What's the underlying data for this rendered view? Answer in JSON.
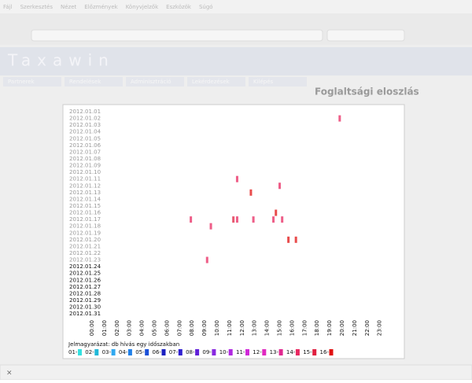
{
  "browser": {
    "menu": [
      "Fájl",
      "Szerkesztés",
      "Nézet",
      "Előzmények",
      "Könyvjelzők",
      "Eszközök",
      "Súgó"
    ]
  },
  "header": {
    "title": "Taxawin",
    "nav": [
      "Partnerek",
      "Rendelések",
      "Adminisztráció",
      "Lekérdezések",
      "Kilépés"
    ]
  },
  "chart_data": {
    "type": "occupancy",
    "title": "Foglaltsági eloszlás",
    "dates": [
      "2012.01.01",
      "2012.01.02",
      "2012.01.03",
      "2012.01.04",
      "2012.01.05",
      "2012.01.06",
      "2012.01.07",
      "2012.01.08",
      "2012.01.09",
      "2012.01.10",
      "2012.01.11",
      "2012.01.12",
      "2012.01.13",
      "2012.01.14",
      "2012.01.15",
      "2012.01.16",
      "2012.01.17",
      "2012.01.18",
      "2012.01.19",
      "2012.01.20",
      "2012.01.21",
      "2012.01.22",
      "2012.01.23",
      "2012.01.24",
      "2012.01.25",
      "2012.01.26",
      "2012.01.27",
      "2012.01.28",
      "2012.01.29",
      "2012.01.30",
      "2012.01.31"
    ],
    "hours": [
      "00:00",
      "01:00",
      "02:00",
      "03:00",
      "04:00",
      "05:00",
      "06:00",
      "07:00",
      "08:00",
      "09:00",
      "10:00",
      "11:00",
      "12:00",
      "13:00",
      "14:00",
      "15:00",
      "16:00",
      "17:00",
      "18:00",
      "19:00",
      "20:00",
      "21:00",
      "22:00",
      "23:00"
    ],
    "legend_title": "Jelmagyarázat: db hívás egy időszakban",
    "legend": [
      {
        "name": "01-",
        "color": "#33e0e0"
      },
      {
        "name": "02-",
        "color": "#20b8d8"
      },
      {
        "name": "03-",
        "color": "#30a8f0"
      },
      {
        "name": "04-",
        "color": "#2080e8"
      },
      {
        "name": "05-",
        "color": "#1a50d8"
      },
      {
        "name": "06-",
        "color": "#1a20c0"
      },
      {
        "name": "07-",
        "color": "#3020d0"
      },
      {
        "name": "08-",
        "color": "#6020d8"
      },
      {
        "name": "09-",
        "color": "#8828e0"
      },
      {
        "name": "10-",
        "color": "#b028e0"
      },
      {
        "name": "11-",
        "color": "#d028d8"
      },
      {
        "name": "12-",
        "color": "#e028c0"
      },
      {
        "name": "13-",
        "color": "#e02890"
      },
      {
        "name": "14-",
        "color": "#e82860"
      },
      {
        "name": "15-",
        "color": "#e02040"
      },
      {
        "name": "16-",
        "color": "#e01010"
      }
    ],
    "marks": [
      {
        "date": 1,
        "hour": 19.8,
        "level": 13
      },
      {
        "date": 10,
        "hour": 11.6,
        "level": 13
      },
      {
        "date": 11,
        "hour": 15.0,
        "level": 13
      },
      {
        "date": 12,
        "hour": 12.7,
        "level": 15
      },
      {
        "date": 15,
        "hour": 14.7,
        "level": 15
      },
      {
        "date": 16,
        "hour": 7.9,
        "level": 13
      },
      {
        "date": 16,
        "hour": 11.3,
        "level": 14
      },
      {
        "date": 16,
        "hour": 11.6,
        "level": 13
      },
      {
        "date": 16,
        "hour": 12.9,
        "level": 13
      },
      {
        "date": 16,
        "hour": 14.5,
        "level": 13
      },
      {
        "date": 16,
        "hour": 15.2,
        "level": 13
      },
      {
        "date": 17,
        "hour": 9.5,
        "level": 13
      },
      {
        "date": 19,
        "hour": 15.7,
        "level": 15
      },
      {
        "date": 19,
        "hour": 16.3,
        "level": 15
      },
      {
        "date": 22,
        "hour": 9.2,
        "level": 13
      }
    ]
  }
}
